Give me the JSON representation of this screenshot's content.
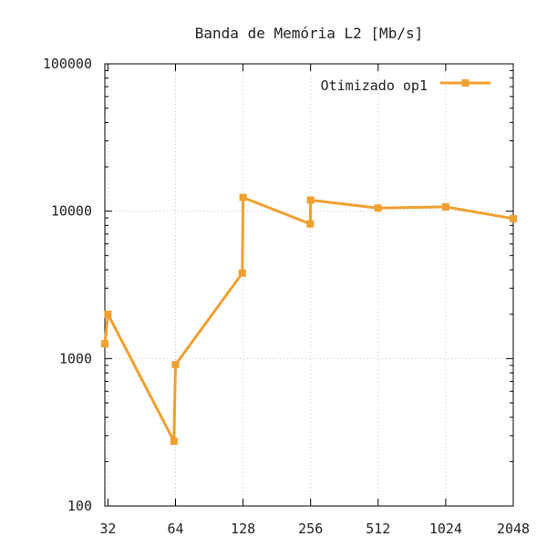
{
  "chart_data": {
    "type": "line",
    "title": "Banda de Memória L2 [Mb/s]",
    "xlabel": "",
    "ylabel": "",
    "x_scale": "log2",
    "y_scale": "log10",
    "xlim": [
      31,
      2048
    ],
    "ylim": [
      100,
      100000
    ],
    "x_ticks": [
      32,
      64,
      128,
      256,
      512,
      1024,
      2048
    ],
    "x_tick_labels": [
      "32",
      "64",
      "128",
      "256",
      "512",
      "1024",
      "2048"
    ],
    "y_ticks": [
      100,
      1000,
      10000,
      100000
    ],
    "y_tick_labels": [
      "100",
      "1000",
      "10000",
      "100000"
    ],
    "grid": true,
    "legend_position": "top-right",
    "series": [
      {
        "name": "Otimizado op1",
        "color": "#f0a030",
        "marker": "square",
        "points": [
          {
            "x": 31,
            "y": 1260
          },
          {
            "x": 32,
            "y": 2000
          },
          {
            "x": 63,
            "y": 275
          },
          {
            "x": 64,
            "y": 910
          },
          {
            "x": 127,
            "y": 3800
          },
          {
            "x": 128,
            "y": 12400
          },
          {
            "x": 255,
            "y": 8200
          },
          {
            "x": 256,
            "y": 11900
          },
          {
            "x": 511,
            "y": 10500
          },
          {
            "x": 1023,
            "y": 10700
          },
          {
            "x": 2047,
            "y": 8900
          }
        ]
      }
    ]
  }
}
